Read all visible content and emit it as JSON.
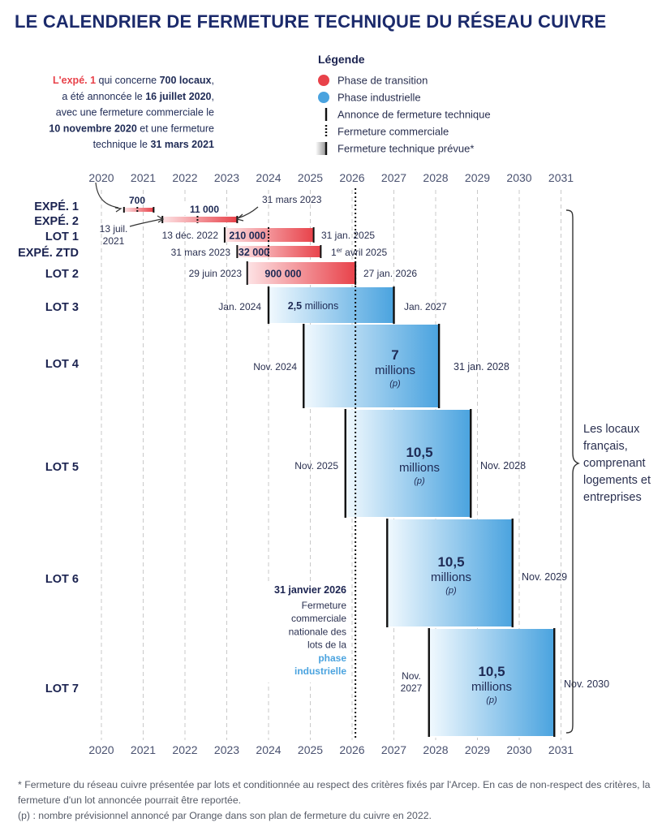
{
  "title": "LE CALENDRIER DE FERMETURE TECHNIQUE DU RÉSEAU CUIVRE",
  "intro_note": {
    "lines": [
      [
        {
          "t": "L'expé. 1",
          "b": true,
          "red": true
        },
        {
          "t": " qui concerne "
        },
        {
          "t": "700 locaux",
          "b": true
        },
        {
          "t": ","
        }
      ],
      [
        {
          "t": "a été annoncée le "
        },
        {
          "t": "16 juillet 2020",
          "b": true
        },
        {
          "t": ","
        }
      ],
      [
        {
          "t": "avec une fermeture commerciale le"
        }
      ],
      [
        {
          "t": "10 novembre 2020",
          "b": true
        },
        {
          "t": " et une fermeture"
        }
      ],
      [
        {
          "t": "technique le "
        },
        {
          "t": "31 mars 2021",
          "b": true
        }
      ]
    ]
  },
  "legend": {
    "title": "Légende",
    "items": [
      {
        "label": "Phase de transition",
        "kind": "dot",
        "color": "#e8424a"
      },
      {
        "label": "Phase industrielle",
        "kind": "dot",
        "color": "#4aa3df"
      },
      {
        "label": "Annonce de fermeture technique",
        "kind": "solid"
      },
      {
        "label": "Fermeture commerciale",
        "kind": "dotted"
      },
      {
        "label": "Fermeture technique prévue*",
        "kind": "gradient"
      }
    ]
  },
  "colors": {
    "transition": "#e8424a",
    "transition_light": "#fbe0e2",
    "industrial": "#4aa3df",
    "industrial_light": "#eaf6fd",
    "text": "#1e2a55",
    "grid": "#c9c9c9"
  },
  "side_note": [
    "Les locaux",
    "français,",
    "comprenant",
    "logements et",
    "entreprises"
  ],
  "commercial_closure_note": {
    "date": "31 janvier 2026",
    "lines": [
      "Fermeture",
      "commerciale",
      "nationale des",
      "lots de la"
    ],
    "highlight": [
      "phase",
      "industrielle"
    ]
  },
  "footnotes": [
    "* Fermeture du réseau cuivre présentée par lots et conditionnée au respect des critères fixés par l'Arcep. En cas de non-respect des critères, la fermeture d'un lot annoncée pourrait être reportée.",
    "(p) : nombre prévisionnel annoncé par Orange dans son plan de fermeture du cuivre en 2022."
  ],
  "chart_data": {
    "type": "gantt",
    "x_ticks": [
      "2020",
      "2021",
      "2022",
      "2023",
      "2024",
      "2025",
      "2026",
      "2027",
      "2028",
      "2029",
      "2030",
      "2031"
    ],
    "xlim": [
      2020,
      2031
    ],
    "grid": true,
    "commercial_closure_line": 2026.08,
    "series": [
      {
        "name": "EXPÉ. 1",
        "phase": "transition",
        "start": 2020.54,
        "commercial": 2020.86,
        "end": 2021.25,
        "value": "700",
        "value_lines": [
          [
            {
              "t": "700",
              "b": true
            }
          ]
        ],
        "value_pos": "above",
        "start_label": [],
        "end_label": []
      },
      {
        "name": "EXPÉ. 2",
        "phase": "transition",
        "start": 2021.46,
        "commercial": 2022.3,
        "end": 2023.25,
        "value": "11 000",
        "value_lines": [
          [
            {
              "t": "11 000",
              "b": true
            }
          ]
        ],
        "value_pos": "above",
        "start_label": [
          "13 juil.",
          "2021"
        ],
        "end_label": [
          "31 mars 2023"
        ]
      },
      {
        "name": "LOT 1",
        "phase": "transition",
        "start": 2022.95,
        "commercial": 2024.0,
        "end": 2025.08,
        "value": "210 000",
        "value_lines": [
          [
            {
              "t": "210 000",
              "b": true
            }
          ]
        ],
        "value_pos": "inside",
        "start_label": [
          "13 déc. 2022"
        ],
        "end_label": [
          "31 jan. 2025"
        ]
      },
      {
        "name": "EXPÉ. ZTD",
        "phase": "transition",
        "start": 2023.25,
        "commercial": 2024.0,
        "end": 2025.25,
        "value": "32 000",
        "value_lines": [
          [
            {
              "t": "32 000",
              "b": true
            }
          ]
        ],
        "value_pos": "inside",
        "start_label": [
          "31 mars 2023"
        ],
        "end_label": [
          "1er avril 2025"
        ]
      },
      {
        "name": "LOT 2",
        "phase": "transition",
        "start": 2023.49,
        "commercial": null,
        "end": 2026.08,
        "value": "900 000",
        "value_lines": [
          [
            {
              "t": "900 000",
              "b": true
            }
          ]
        ],
        "value_pos": "inside",
        "start_label": [
          "29 juin 2023"
        ],
        "end_label": [
          "27 jan. 2026"
        ]
      },
      {
        "name": "LOT 3",
        "phase": "industrial",
        "start": 2024.0,
        "commercial": null,
        "end": 2027.0,
        "value": "2,5 millions",
        "value_lines": [
          [
            {
              "t": "2,5",
              "b": true
            },
            {
              "t": " millions"
            }
          ]
        ],
        "value_pos": "inside",
        "start_label": [
          "Jan. 2024"
        ],
        "end_label": [
          "Jan. 2027"
        ]
      },
      {
        "name": "LOT 4",
        "phase": "industrial",
        "start": 2024.84,
        "commercial": null,
        "end": 2028.08,
        "value": "7 millions (p)",
        "value_lines": [
          [
            {
              "t": "7",
              "b": true,
              "big": true
            }
          ],
          [
            {
              "t": "millions"
            }
          ],
          [
            {
              "t": "(p)",
              "i": true
            }
          ]
        ],
        "value_pos": "inside",
        "start_label": [
          "Nov. 2024"
        ],
        "end_label": [
          "31 jan. 2028"
        ]
      },
      {
        "name": "LOT 5",
        "phase": "industrial",
        "start": 2025.84,
        "commercial": null,
        "end": 2028.84,
        "value": "10,5 millions (p)",
        "value_lines": [
          [
            {
              "t": "10,5",
              "b": true,
              "big": true
            }
          ],
          [
            {
              "t": "millions"
            }
          ],
          [
            {
              "t": "(p)",
              "i": true
            }
          ]
        ],
        "value_pos": "inside",
        "start_label": [
          "Nov. 2025"
        ],
        "end_label": [
          "Nov. 2028"
        ]
      },
      {
        "name": "LOT 6",
        "phase": "industrial",
        "start": 2026.84,
        "commercial": null,
        "end": 2029.84,
        "value": "10,5 millions (p)",
        "value_lines": [
          [
            {
              "t": "10,5",
              "b": true,
              "big": true
            }
          ],
          [
            {
              "t": "millions"
            }
          ],
          [
            {
              "t": "(p)",
              "i": true
            }
          ]
        ],
        "value_pos": "inside",
        "start_label": [],
        "end_label": [
          "Nov. 2029"
        ]
      },
      {
        "name": "LOT 7",
        "phase": "industrial",
        "start": 2027.84,
        "commercial": null,
        "end": 2030.84,
        "value": "10,5 millions (p)",
        "value_lines": [
          [
            {
              "t": "10,5",
              "b": true,
              "big": true
            }
          ],
          [
            {
              "t": "millions"
            }
          ],
          [
            {
              "t": "(p)",
              "i": true
            }
          ]
        ],
        "value_pos": "inside",
        "start_label": [
          "Nov.",
          "2027"
        ],
        "end_label": [
          "Nov. 2030"
        ]
      }
    ]
  }
}
